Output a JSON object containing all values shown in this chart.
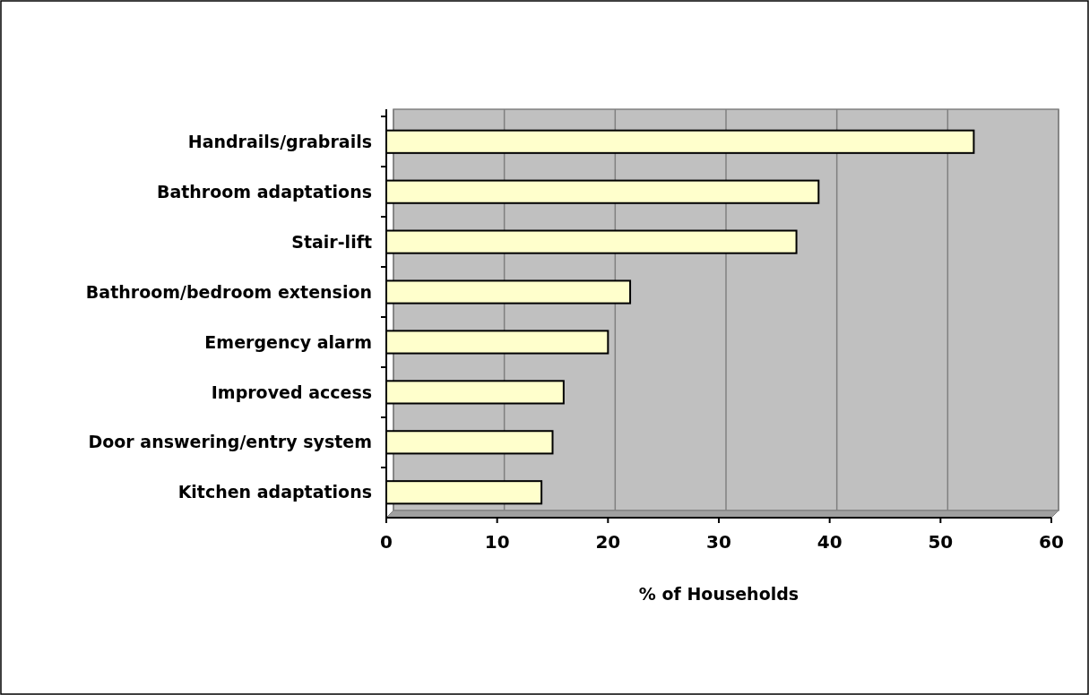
{
  "chart_data": {
    "type": "bar",
    "orientation": "horizontal",
    "xlabel": "% of Households",
    "categories": [
      "Handrails/grabrails",
      "Bathroom adaptations",
      "Stair-lift",
      "Bathroom/bedroom extension",
      "Emergency alarm",
      "Improved access",
      "Door answering/entry system",
      "Kitchen adaptations"
    ],
    "values": [
      53,
      39,
      37,
      22,
      20,
      16,
      15,
      14
    ],
    "color": "#ffffcc",
    "xlim": [
      0,
      60
    ],
    "xticks": [
      0,
      10,
      20,
      30,
      40,
      50,
      60
    ],
    "grid": "x"
  }
}
